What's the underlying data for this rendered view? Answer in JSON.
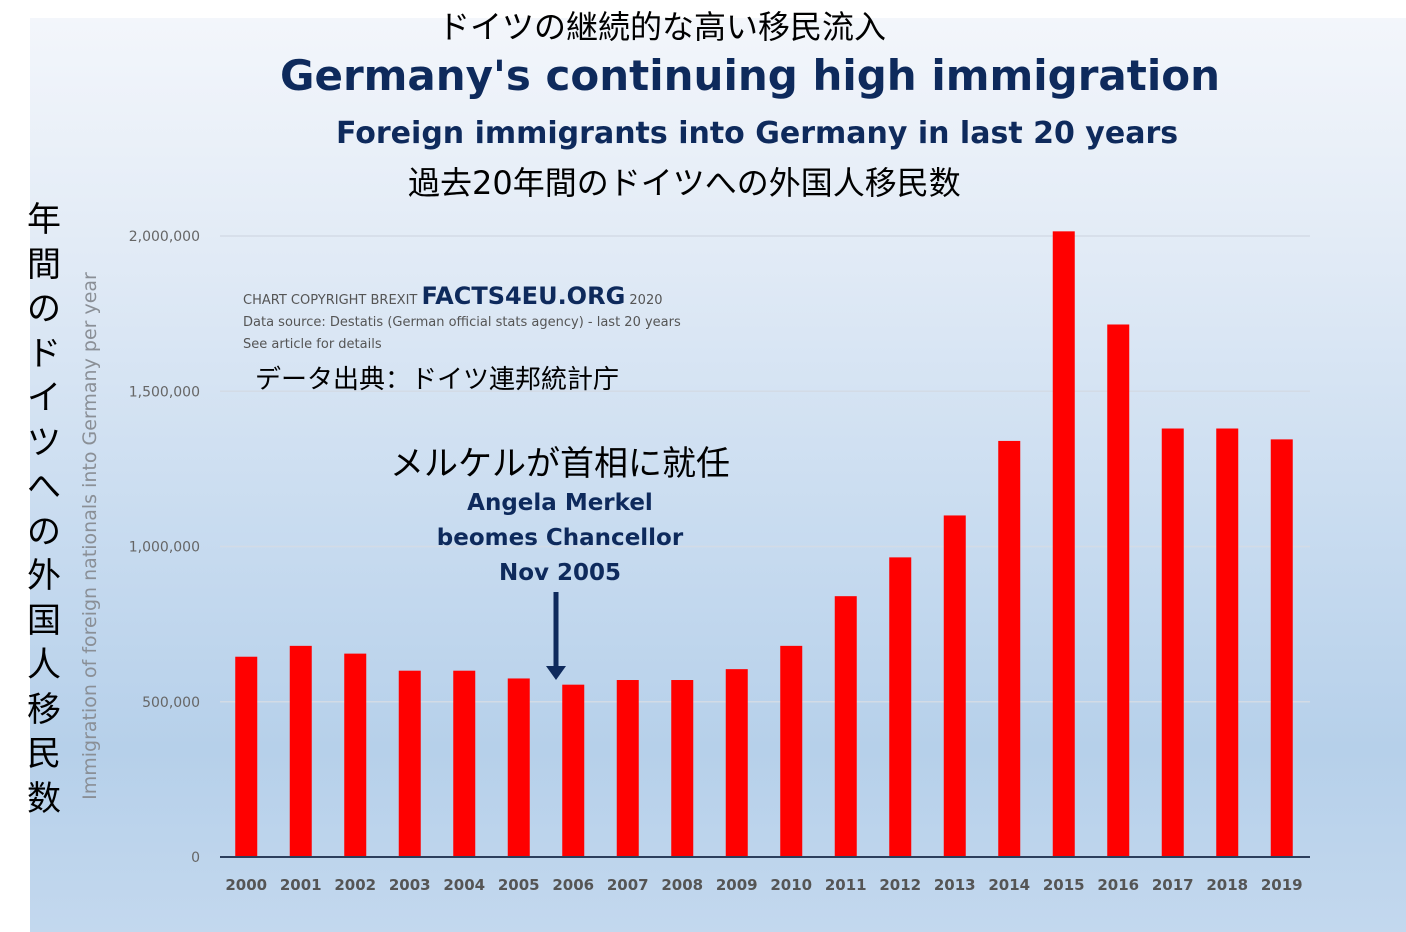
{
  "chart_data": {
    "type": "bar",
    "title": "Germany's continuing high immigration",
    "title_jp": "ドイツの継続的な高い移民流入",
    "subtitle": "Foreign immigrants into Germany in last 20 years",
    "subtitle_jp": "過去20年間のドイツへの外国人移民数",
    "xlabel": "",
    "ylabel": "Immigration of foreign nationals into Germany per year",
    "ylabel_jp": "年間のドイツへの外国人移民数",
    "ylim": [
      0,
      2000000
    ],
    "yticks": [
      0,
      500000,
      1000000,
      1500000,
      2000000
    ],
    "ytick_labels": [
      "0",
      "500,000",
      "1,000,000",
      "1,500,000",
      "2,000,000"
    ],
    "grid": true,
    "categories": [
      "2000",
      "2001",
      "2002",
      "2003",
      "2004",
      "2005",
      "2006",
      "2007",
      "2008",
      "2009",
      "2010",
      "2011",
      "2012",
      "2013",
      "2014",
      "2015",
      "2016",
      "2017",
      "2018",
      "2019"
    ],
    "values": [
      645000,
      680000,
      655000,
      600000,
      600000,
      575000,
      555000,
      570000,
      570000,
      605000,
      680000,
      840000,
      965000,
      1100000,
      1340000,
      2015000,
      1715000,
      1380000,
      1380000,
      1345000
    ],
    "bar_color": "#ff0000",
    "annotations": {
      "copyright_prefix": "CHART COPYRIGHT BREXIT",
      "copyright_brand": "FACTS4EU.ORG",
      "copyright_year": "2020",
      "source": "Data source:  Destatis (German official stats agency) - last 20 years",
      "see_article": "See article for details",
      "source_jp": "データ出典：ドイツ連邦統計庁",
      "merkel_jp": "メルケルが首相に就任",
      "merkel_line1": "Angela Merkel",
      "merkel_line2": "beomes Chancellor",
      "merkel_line3": "Nov 2005"
    }
  }
}
